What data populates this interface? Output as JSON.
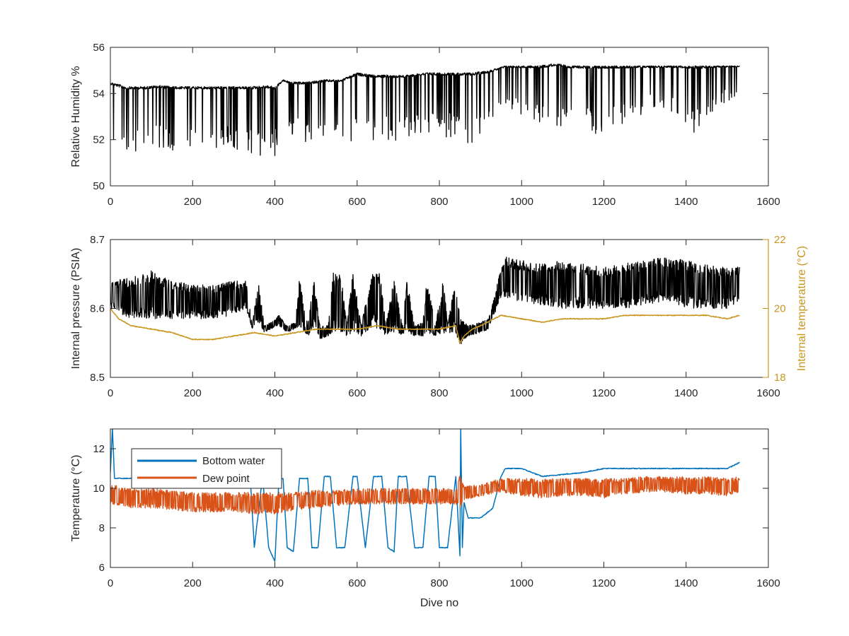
{
  "colors": {
    "axis": "#262626",
    "black_series": "#000000",
    "internal_temperature": "#C8961E",
    "bottom_water": "#0072BD",
    "dew_point": "#D95319"
  },
  "chart_data": [
    {
      "type": "line",
      "xlabel": "",
      "ylabel": "Relative Humidity %",
      "xlim": [
        0,
        1600
      ],
      "ylim": [
        50,
        56
      ],
      "x_ticks": [
        "0",
        "200",
        "400",
        "600",
        "800",
        "1000",
        "1200",
        "1400",
        "1600"
      ],
      "y_ticks": [
        "50",
        "52",
        "54",
        "56"
      ],
      "grid": false,
      "series": [
        {
          "color": "#000000",
          "x": [
            0,
            20,
            40,
            80,
            120,
            160,
            200,
            250,
            300,
            340,
            380,
            400,
            420,
            440,
            480,
            520,
            560,
            600,
            640,
            680,
            720,
            760,
            800,
            840,
            880,
            920,
            960,
            1000,
            1040,
            1080,
            1120,
            1160,
            1200,
            1240,
            1280,
            1320,
            1360,
            1400,
            1440,
            1480,
            1530
          ],
          "upper": [
            54.5,
            54.4,
            54.3,
            54.3,
            54.35,
            54.3,
            54.3,
            54.3,
            54.3,
            54.3,
            54.35,
            54.3,
            54.6,
            54.5,
            54.5,
            54.6,
            54.6,
            54.9,
            54.8,
            54.8,
            54.8,
            54.9,
            54.9,
            54.9,
            54.9,
            55.0,
            55.2,
            55.2,
            55.2,
            55.3,
            55.2,
            55.2,
            55.2,
            55.2,
            55.2,
            55.2,
            55.2,
            55.2,
            55.2,
            55.2,
            55.2
          ],
          "lower": [
            51.5,
            51.4,
            51.3,
            51.4,
            51.5,
            51.5,
            51.6,
            51.5,
            51.6,
            51.4,
            51.2,
            51.2,
            52.8,
            52.2,
            51.8,
            52.0,
            52.2,
            51.8,
            52.0,
            51.8,
            52.0,
            52.2,
            52.2,
            52.0,
            51.8,
            52.5,
            53.0,
            53.0,
            52.5,
            52.5,
            52.6,
            52.3,
            52.2,
            52.5,
            53.0,
            53.2,
            53.3,
            52.4,
            52.0,
            53.5,
            53.9
          ]
        }
      ]
    },
    {
      "type": "line",
      "xlabel": "",
      "ylabel": "Internal pressure (PSIA)",
      "y2label": "Internal temperature (°C)",
      "xlim": [
        0,
        1600
      ],
      "ylim": [
        8.5,
        8.7
      ],
      "y2lim": [
        18,
        22
      ],
      "x_ticks": [
        "0",
        "200",
        "400",
        "600",
        "800",
        "1000",
        "1200",
        "1400",
        "1600"
      ],
      "y_ticks": [
        "8.5",
        "8.6",
        "8.7"
      ],
      "y2_ticks": [
        "18",
        "20",
        "22"
      ],
      "grid": false,
      "series": [
        {
          "color": "#000000",
          "axis": "left",
          "x": [
            0,
            50,
            100,
            150,
            200,
            250,
            300,
            330,
            345,
            360,
            375,
            390,
            410,
            430,
            450,
            460,
            480,
            495,
            510,
            530,
            540,
            560,
            575,
            590,
            610,
            640,
            655,
            670,
            690,
            710,
            720,
            740,
            760,
            770,
            790,
            810,
            820,
            840,
            850,
            870,
            900,
            920,
            950,
            960,
            1000,
            1050,
            1100,
            1150,
            1200,
            1250,
            1300,
            1350,
            1400,
            1450,
            1500,
            1530
          ],
          "upper": [
            8.64,
            8.645,
            8.655,
            8.64,
            8.635,
            8.635,
            8.64,
            8.64,
            8.575,
            8.64,
            8.575,
            8.58,
            8.59,
            8.575,
            8.58,
            8.645,
            8.575,
            8.645,
            8.575,
            8.575,
            8.655,
            8.655,
            8.575,
            8.655,
            8.575,
            8.665,
            8.655,
            8.575,
            8.645,
            8.575,
            8.645,
            8.575,
            8.58,
            8.645,
            8.575,
            8.645,
            8.575,
            8.645,
            8.585,
            8.575,
            8.58,
            8.585,
            8.66,
            8.675,
            8.67,
            8.665,
            8.67,
            8.665,
            8.66,
            8.665,
            8.67,
            8.675,
            8.67,
            8.665,
            8.66,
            8.66
          ],
          "lower": [
            8.6,
            8.585,
            8.585,
            8.585,
            8.585,
            8.585,
            8.59,
            8.6,
            8.57,
            8.58,
            8.565,
            8.57,
            8.575,
            8.565,
            8.57,
            8.575,
            8.56,
            8.57,
            8.555,
            8.56,
            8.565,
            8.565,
            8.56,
            8.565,
            8.56,
            8.57,
            8.57,
            8.56,
            8.565,
            8.56,
            8.565,
            8.56,
            8.56,
            8.565,
            8.56,
            8.565,
            8.56,
            8.565,
            8.545,
            8.56,
            8.565,
            8.57,
            8.615,
            8.615,
            8.61,
            8.605,
            8.6,
            8.6,
            8.6,
            8.6,
            8.605,
            8.61,
            8.6,
            8.6,
            8.6,
            8.61
          ]
        },
        {
          "color": "#C8961E",
          "axis": "right",
          "x": [
            0,
            20,
            50,
            100,
            150,
            200,
            250,
            300,
            350,
            400,
            450,
            500,
            550,
            600,
            650,
            700,
            750,
            800,
            840,
            850,
            860,
            880,
            900,
            950,
            1000,
            1050,
            1100,
            1150,
            1200,
            1250,
            1300,
            1350,
            1400,
            1450,
            1500,
            1530
          ],
          "y": [
            20.0,
            19.7,
            19.5,
            19.4,
            19.3,
            19.1,
            19.1,
            19.2,
            19.3,
            19.2,
            19.3,
            19.4,
            19.4,
            19.4,
            19.5,
            19.4,
            19.4,
            19.4,
            19.5,
            19.0,
            19.2,
            19.4,
            19.5,
            19.8,
            19.7,
            19.6,
            19.7,
            19.7,
            19.7,
            19.8,
            19.8,
            19.8,
            19.8,
            19.8,
            19.7,
            19.8
          ]
        }
      ]
    },
    {
      "type": "line",
      "xlabel": "Dive no",
      "ylabel": "Temperature (°C)",
      "xlim": [
        0,
        1600
      ],
      "ylim": [
        6,
        13
      ],
      "x_ticks": [
        "0",
        "200",
        "400",
        "600",
        "800",
        "1000",
        "1200",
        "1400",
        "1600"
      ],
      "y_ticks": [
        "6",
        "8",
        "10",
        "12"
      ],
      "grid": false,
      "legend_position": "top-left",
      "series": [
        {
          "name": "Bottom water",
          "color": "#0072BD",
          "x": [
            0,
            5,
            10,
            30,
            60,
            100,
            150,
            200,
            250,
            300,
            330,
            340,
            350,
            370,
            385,
            400,
            410,
            420,
            430,
            445,
            460,
            480,
            490,
            505,
            520,
            535,
            550,
            570,
            590,
            600,
            620,
            640,
            660,
            675,
            690,
            700,
            720,
            740,
            760,
            775,
            790,
            800,
            820,
            840,
            850,
            852,
            856,
            860,
            870,
            900,
            930,
            950,
            960,
            1000,
            1050,
            1100,
            1150,
            1200,
            1250,
            1300,
            1350,
            1400,
            1450,
            1500,
            1520,
            1530
          ],
          "y": [
            10.8,
            13.0,
            10.5,
            10.5,
            10.5,
            10.6,
            10.6,
            10.6,
            10.6,
            10.6,
            10.6,
            10.6,
            7.0,
            10.6,
            7.0,
            6.3,
            10.5,
            10.5,
            7.0,
            6.8,
            10.5,
            10.5,
            7.0,
            7.0,
            10.6,
            10.6,
            7.0,
            7.0,
            10.6,
            10.6,
            7.0,
            10.6,
            10.6,
            7.0,
            6.8,
            10.6,
            10.6,
            7.0,
            7.0,
            10.6,
            10.6,
            7.0,
            7.0,
            10.6,
            6.6,
            13.0,
            7.0,
            9.3,
            8.5,
            8.5,
            9.0,
            10.6,
            11.0,
            11.0,
            10.6,
            10.7,
            10.8,
            11.0,
            11.0,
            11.0,
            11.0,
            11.0,
            11.0,
            11.0,
            11.2,
            11.3
          ]
        },
        {
          "name": "Dew point",
          "color": "#D95319",
          "x": [
            0,
            50,
            100,
            150,
            200,
            250,
            300,
            350,
            400,
            450,
            500,
            550,
            600,
            650,
            700,
            750,
            800,
            840,
            850,
            860,
            900,
            950,
            1000,
            1050,
            1100,
            1150,
            1200,
            1250,
            1300,
            1350,
            1400,
            1450,
            1500,
            1530
          ],
          "upper": [
            10.2,
            10.0,
            10.0,
            9.9,
            9.8,
            9.8,
            9.8,
            9.8,
            9.8,
            9.8,
            9.9,
            9.9,
            10.0,
            10.0,
            10.0,
            10.0,
            10.0,
            10.0,
            10.9,
            10.1,
            10.2,
            10.5,
            10.5,
            10.5,
            10.5,
            10.5,
            10.5,
            10.5,
            10.6,
            10.6,
            10.6,
            10.6,
            10.5,
            10.6
          ],
          "lower": [
            9.2,
            9.0,
            9.0,
            8.9,
            8.8,
            8.8,
            8.8,
            8.7,
            8.7,
            8.9,
            9.0,
            9.1,
            9.2,
            9.2,
            9.2,
            9.2,
            9.2,
            9.2,
            9.0,
            9.4,
            9.6,
            9.8,
            9.6,
            9.5,
            9.6,
            9.6,
            9.5,
            9.7,
            9.8,
            9.8,
            9.7,
            9.7,
            9.6,
            9.8
          ]
        }
      ]
    }
  ]
}
